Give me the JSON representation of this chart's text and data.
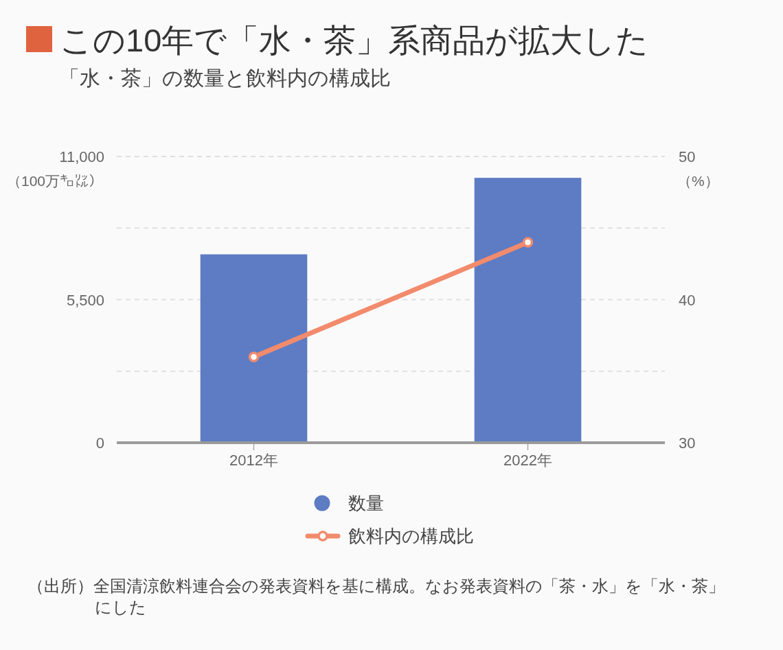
{
  "chart_data": {
    "type": "bar",
    "title": "この10年で「水・茶」系商品が拡大した",
    "subtitle": "「水・茶」の数量と飲料内の構成比",
    "categories": [
      "2012年",
      "2022年"
    ],
    "series": [
      {
        "name": "数量",
        "color": "#5d7cc4",
        "values": [
          7240,
          10180
        ]
      },
      {
        "name": "飲料内の構成比",
        "type": "line",
        "axis": "y2",
        "color": "#f28b6c",
        "marker": "circle",
        "values": [
          36.0,
          44.0
        ]
      }
    ],
    "ylabel": "（100万㌔㍑）",
    "y2label": "（%）",
    "ylim": [
      0,
      11000
    ],
    "yticks": [
      0,
      {
        "value": 2750,
        "label": null
      },
      {
        "value": 5500,
        "label": "5,500"
      },
      {
        "value": 8250,
        "label": null
      },
      {
        "value": 11000,
        "label": "11,000"
      }
    ],
    "y2lim": [
      30,
      50
    ],
    "y2ticks": [
      30,
      {
        "value": 35,
        "label": null
      },
      40,
      {
        "value": 45,
        "label": null
      },
      50
    ],
    "grid": "y",
    "legend": "bottom",
    "annotations": [
      "（出所）全国清涼飲料連合会の発表資料を基に構成。なお発表資料の「茶・水」を「水・茶」にした"
    ]
  }
}
